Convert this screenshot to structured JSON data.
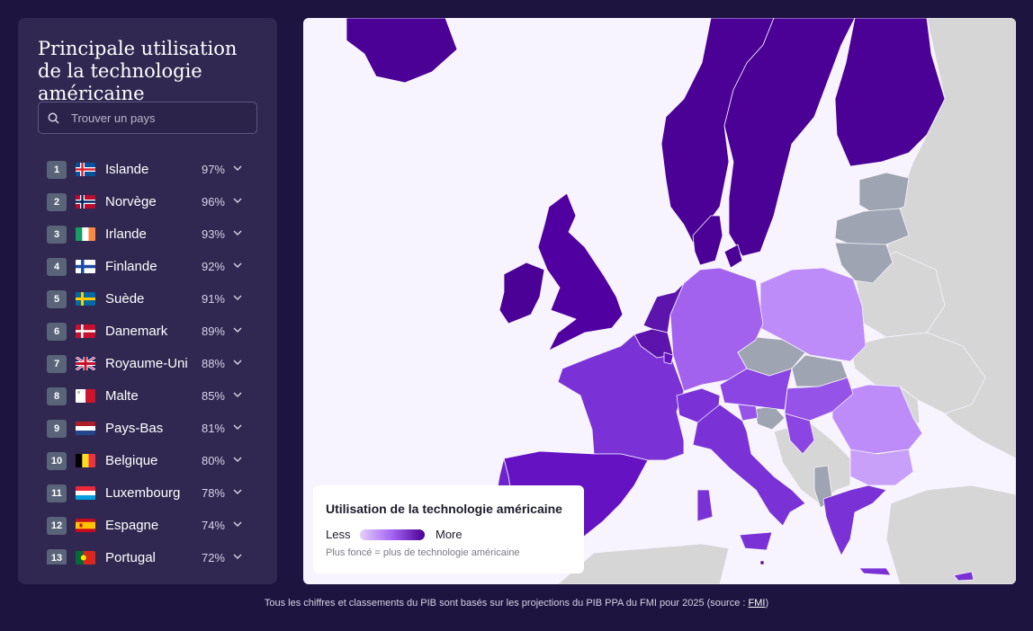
{
  "sidebar": {
    "title": "Principale utilisation de la technologie américaine",
    "search_placeholder": "Trouver un pays",
    "countries": [
      {
        "rank": "1",
        "name": "Islande",
        "value": "97%"
      },
      {
        "rank": "2",
        "name": "Norvège",
        "value": "96%"
      },
      {
        "rank": "3",
        "name": "Irlande",
        "value": "93%"
      },
      {
        "rank": "4",
        "name": "Finlande",
        "value": "92%"
      },
      {
        "rank": "5",
        "name": "Suède",
        "value": "91%"
      },
      {
        "rank": "6",
        "name": "Danemark",
        "value": "89%"
      },
      {
        "rank": "7",
        "name": "Royaume-Uni",
        "value": "88%"
      },
      {
        "rank": "8",
        "name": "Malte",
        "value": "85%"
      },
      {
        "rank": "9",
        "name": "Pays-Bas",
        "value": "81%"
      },
      {
        "rank": "10",
        "name": "Belgique",
        "value": "80%"
      },
      {
        "rank": "11",
        "name": "Luxembourg",
        "value": "78%"
      },
      {
        "rank": "12",
        "name": "Espagne",
        "value": "74%"
      },
      {
        "rank": "13",
        "name": "Portugal",
        "value": "72%"
      }
    ]
  },
  "legend": {
    "title": "Utilisation de la technologie américaine",
    "less": "Less",
    "more": "More",
    "note": "Plus foncé = plus de technologie américaine"
  },
  "footer": {
    "text": "Tous les chiffres et classements du PIB sont basés sur les projections du PIB PPA du FMI pour 2025 (source : ",
    "link": "FMI",
    "end": ")"
  },
  "colors": {
    "background": "#1d1540",
    "panel": "#302851",
    "darkest": "#4b0096",
    "dark": "#5c14ad",
    "mid": "#7a32d6",
    "light": "#a262ee",
    "lightest": "#bd8cf8",
    "nodata": "#9ea4b1",
    "outside": "#d6d6d6"
  }
}
